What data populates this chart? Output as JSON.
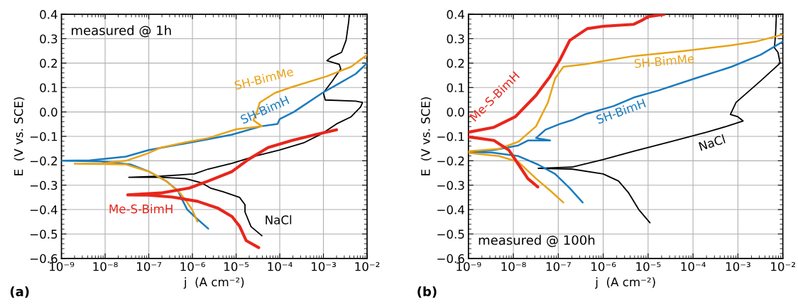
{
  "chart_data": [
    {
      "type": "line",
      "xlabel": "j  (A cm⁻²)",
      "ylabel": "E  (V vs. SCE)",
      "log": "x",
      "grid": true,
      "legend": false,
      "annotations": [
        "measured @ 1h",
        "(a)"
      ],
      "xlim": [
        1e-09,
        0.01
      ],
      "ylim": [
        -0.6,
        0.4
      ],
      "xticks": [
        {
          "value": 1e-09,
          "label": "10⁻⁹"
        },
        {
          "value": 1e-08,
          "label": "10⁻⁸"
        },
        {
          "value": 1e-07,
          "label": "10⁻⁷"
        },
        {
          "value": 1e-06,
          "label": "10⁻⁶"
        },
        {
          "value": 1e-05,
          "label": "10⁻⁵"
        },
        {
          "value": 0.0001,
          "label": "10⁻⁴"
        },
        {
          "value": 0.001,
          "label": "10⁻³"
        },
        {
          "value": 0.01,
          "label": "10⁻²"
        }
      ],
      "yticks": [
        {
          "value": -0.6,
          "label": "−0.6"
        },
        {
          "value": -0.5,
          "label": "−0.5"
        },
        {
          "value": -0.4,
          "label": "−0.4"
        },
        {
          "value": -0.3,
          "label": "−0.3"
        },
        {
          "value": -0.2,
          "label": "−0.2"
        },
        {
          "value": -0.1,
          "label": "−0.1"
        },
        {
          "value": 0.0,
          "label": "0.0"
        },
        {
          "value": 0.1,
          "label": "0.1"
        },
        {
          "value": 0.2,
          "label": "0.2"
        },
        {
          "value": 0.3,
          "label": "0.3"
        },
        {
          "value": 0.4,
          "label": "0.4"
        }
      ],
      "series": [
        {
          "name": "NaCl",
          "color": "#000000",
          "x": [
            3.9e-05,
            2.2e-05,
            1.6e-05,
            1.6e-05,
            1.2e-05,
            5e-06,
            2.6e-06,
            1.6e-06,
            6.8e-07,
            1.9e-07,
            3.5e-08,
            1.9e-07,
            1.1e-06,
            2.3e-06,
            8.1e-06,
            2.9e-05,
            0.0001,
            0.00035,
            0.00095,
            0.002,
            0.0043,
            0.0071,
            0.0079,
            0.0055,
            0.0011,
            0.001,
            0.0016,
            0.0025,
            0.0023,
            0.0012,
            0.0015,
            0.0026,
            0.0033,
            0.0038,
            0.0039
          ],
          "values": [
            -0.507,
            -0.47,
            -0.41,
            -0.38,
            -0.35,
            -0.327,
            -0.312,
            -0.29,
            -0.273,
            -0.268,
            -0.268,
            -0.263,
            -0.254,
            -0.234,
            -0.21,
            -0.18,
            -0.156,
            -0.127,
            -0.088,
            -0.049,
            -0.02,
            0.02,
            0.039,
            0.044,
            0.049,
            0.078,
            0.127,
            0.176,
            0.195,
            0.21,
            0.224,
            0.244,
            0.293,
            0.371,
            0.4
          ]
        },
        {
          "name": "SH-BimH",
          "color": "#1a7bbd",
          "x": [
            2.3e-06,
            1.3e-06,
            7.6e-07,
            5.9e-07,
            4.6e-07,
            2.5e-07,
            1e-07,
            3.8e-08,
            8.3e-09,
            1e-09,
            4.5e-09,
            3e-08,
            1e-07,
            6.8e-07,
            2.3e-06,
            8.1e-06,
            3.7e-05,
            8.9e-05,
            0.0001,
            0.00021,
            0.00095,
            0.0023,
            0.0055,
            0.01
          ],
          "values": [
            -0.478,
            -0.439,
            -0.4,
            -0.361,
            -0.322,
            -0.283,
            -0.244,
            -0.215,
            -0.203,
            -0.2,
            -0.198,
            -0.183,
            -0.156,
            -0.129,
            -0.112,
            -0.093,
            -0.059,
            -0.049,
            -0.029,
            0.0,
            0.078,
            0.117,
            0.156,
            0.2
          ]
        },
        {
          "name": "SH-BimMe",
          "color": "#e8a317",
          "x": [
            1.3e-06,
            9.8e-07,
            7.6e-07,
            5.2e-07,
            2.5e-07,
            1e-07,
            3e-08,
            2e-09,
            8.3e-09,
            3e-08,
            9.1e-08,
            1.9e-07,
            6.8e-07,
            2.3e-06,
            1e-05,
            3.9e-05,
            2.5e-05,
            3e-05,
            3.5e-05,
            7.8e-05,
            0.00019,
            0.0012,
            0.0043,
            0.01
          ],
          "values": [
            -0.449,
            -0.4,
            -0.371,
            -0.332,
            -0.283,
            -0.244,
            -0.215,
            -0.212,
            -0.212,
            -0.2,
            -0.171,
            -0.146,
            -0.125,
            -0.107,
            -0.071,
            -0.059,
            -0.034,
            0.0,
            0.039,
            0.078,
            0.102,
            0.146,
            0.185,
            0.234
          ]
        },
        {
          "name": "Me-S-BimH",
          "color": "#e8261c",
          "x": [
            3.3e-05,
            1.7e-05,
            1.2e-05,
            8.1e-06,
            3.9e-06,
            1.3e-06,
            3.5e-07,
            1e-07,
            3.3e-08,
            1.9e-07,
            8.5e-07,
            2.3e-06,
            8.1e-06,
            1.9e-05,
            5.4e-05,
            0.00019,
            0.00066,
            0.002
          ],
          "values": [
            -0.556,
            -0.527,
            -0.468,
            -0.429,
            -0.395,
            -0.366,
            -0.349,
            -0.341,
            -0.34,
            -0.332,
            -0.312,
            -0.283,
            -0.244,
            -0.195,
            -0.146,
            -0.117,
            -0.093,
            -0.073
          ]
        }
      ]
    },
    {
      "type": "line",
      "xlabel": "j  (A cm⁻²)",
      "ylabel": "E  (V vs. SCE)",
      "log": "x",
      "grid": true,
      "legend": false,
      "annotations": [
        "measured @ 100h",
        "(b)"
      ],
      "xlim": [
        1e-09,
        0.01
      ],
      "ylim": [
        -0.6,
        0.4
      ],
      "xticks": [
        {
          "value": 1e-09,
          "label": "10⁻⁹"
        },
        {
          "value": 1e-08,
          "label": "10⁻⁸"
        },
        {
          "value": 1e-07,
          "label": "10⁻⁷"
        },
        {
          "value": 1e-06,
          "label": "10⁻⁶"
        },
        {
          "value": 1e-05,
          "label": "10⁻⁵"
        },
        {
          "value": 0.0001,
          "label": "10⁻⁴"
        },
        {
          "value": 0.001,
          "label": "10⁻³"
        },
        {
          "value": 0.01,
          "label": "10⁻²"
        }
      ],
      "yticks": [
        {
          "value": -0.6,
          "label": "−0.6"
        },
        {
          "value": -0.5,
          "label": "−0.5"
        },
        {
          "value": -0.4,
          "label": "−0.4"
        },
        {
          "value": -0.3,
          "label": "−0.3"
        },
        {
          "value": -0.2,
          "label": "−0.2"
        },
        {
          "value": -0.1,
          "label": "−0.1"
        },
        {
          "value": 0.0,
          "label": "0.0"
        },
        {
          "value": 0.1,
          "label": "0.1"
        },
        {
          "value": 0.2,
          "label": "0.2"
        },
        {
          "value": 0.3,
          "label": "0.3"
        },
        {
          "value": 0.4,
          "label": "0.4"
        }
      ],
      "series": [
        {
          "name": "NaCl",
          "color": "#000000",
          "x": [
            1.1e-05,
            6.2e-06,
            3.7e-06,
            2.2e-06,
            1e-06,
            2e-07,
            3.6e-08,
            2e-07,
            1e-06,
            4.8e-06,
            3.1e-05,
            0.0002,
            0.00056,
            0.0013,
            0.001,
            0.00068,
            0.00091,
            0.0032,
            0.0087,
            0.0078,
            0.0065,
            0.0069,
            0.0072
          ],
          "values": [
            -0.454,
            -0.4,
            -0.332,
            -0.283,
            -0.254,
            -0.234,
            -0.231,
            -0.226,
            -0.195,
            -0.161,
            -0.122,
            -0.083,
            -0.059,
            -0.037,
            -0.02,
            -0.01,
            0.039,
            0.127,
            0.2,
            0.244,
            0.263,
            0.322,
            0.4
          ]
        },
        {
          "name": "SH-BimH",
          "color": "#1a7bbd",
          "x": [
            3.5e-07,
            1.8e-07,
            8.5e-08,
            3.5e-08,
            1.3e-08,
            3.3e-09,
            1e-09,
            3.7e-09,
            1.3e-08,
            2.1e-08,
            6.6e-08,
            3.2e-08,
            5.2e-08,
            1.1e-07,
            2e-07,
            3.9e-07,
            1.7e-06,
            4.8e-06,
            1.7e-05,
            0.00011,
            0.00072,
            0.0032,
            0.01
          ],
          "values": [
            -0.371,
            -0.312,
            -0.254,
            -0.215,
            -0.181,
            -0.166,
            -0.164,
            -0.156,
            -0.137,
            -0.117,
            -0.117,
            -0.107,
            -0.073,
            -0.049,
            -0.034,
            -0.01,
            0.024,
            0.059,
            0.088,
            0.137,
            0.185,
            0.234,
            0.288
          ]
        },
        {
          "name": "SH-BimMe",
          "color": "#e8a317",
          "x": [
            1.3e-07,
            6.6e-08,
            3.2e-08,
            1.3e-08,
            4.8e-09,
            1e-09,
            null,
            1e-09,
            4.8e-09,
            1.3e-08,
            3.2e-08,
            5.9e-08,
            8.5e-08,
            1.3e-07,
            3.9e-07,
            1.3e-06,
            4.8e-06,
            5.9e-05,
            0.00072,
            0.0025,
            0.01
          ],
          "values": [
            -0.371,
            -0.322,
            -0.273,
            -0.205,
            -0.181,
            -0.168,
            null,
            -0.161,
            -0.151,
            -0.122,
            -0.059,
            0.039,
            0.137,
            0.185,
            0.195,
            0.212,
            0.229,
            0.249,
            0.273,
            0.288,
            0.317
          ]
        },
        {
          "name": "Me-S-BimH",
          "color": "#e8261c",
          "x": [
            3.5e-08,
            2.1e-08,
            1.3e-08,
            7.9e-09,
            3.7e-09,
            1e-09,
            null,
            1e-09,
            3.7e-09,
            1.1e-08,
            3.2e-08,
            6.6e-08,
            1.1e-07,
            1.8e-07,
            4.4e-07,
            1e-06,
            4.8e-06,
            7.4e-06,
            1e-05,
            2.3e-05
          ],
          "values": [
            -0.307,
            -0.273,
            -0.215,
            -0.156,
            -0.117,
            -0.102,
            null,
            -0.083,
            -0.063,
            -0.02,
            0.068,
            0.146,
            0.215,
            0.293,
            0.341,
            0.351,
            0.359,
            0.376,
            0.39,
            0.4
          ]
        }
      ]
    }
  ]
}
